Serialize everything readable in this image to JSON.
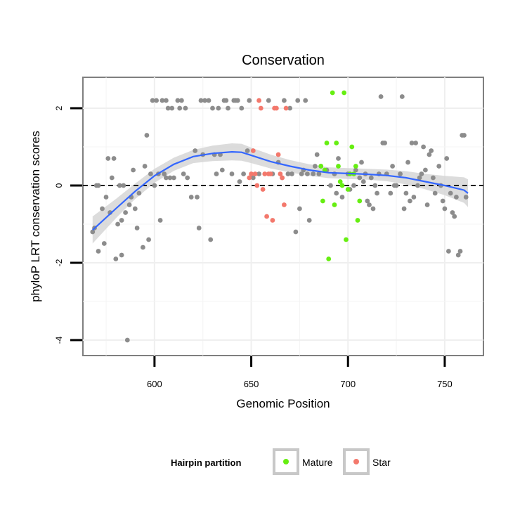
{
  "chart_data": {
    "type": "scatter",
    "title": "Conservation",
    "xlabel": "Genomic Position",
    "ylabel": "phyloP LRT conservation scores",
    "xlim": [
      563,
      770
    ],
    "ylim": [
      -4.4,
      2.8
    ],
    "xticks": [
      600,
      650,
      700,
      750
    ],
    "yticks": [
      -4,
      -2,
      0,
      2
    ],
    "grid": true,
    "reference_line": 0,
    "legend": {
      "title": "Hairpin partition",
      "position": "bottom",
      "entries": [
        {
          "label": "Mature",
          "color": "#66ee11"
        },
        {
          "label": "Star",
          "color": "#f3786c"
        }
      ]
    },
    "colors": {
      "other": "#8c8c8c",
      "mature": "#66ee11",
      "star": "#f3786c",
      "smooth": "#3366ff",
      "band": "#d3d3d3"
    },
    "series": [
      {
        "name": "",
        "group": "other",
        "points": [
          [
            568,
            -1.2
          ],
          [
            569,
            -1.1
          ],
          [
            570,
            0.0
          ],
          [
            571,
            0.0
          ],
          [
            571,
            -1.7
          ],
          [
            573,
            -0.6
          ],
          [
            574,
            -1.5
          ],
          [
            575,
            -0.3
          ],
          [
            576,
            0.7
          ],
          [
            577,
            -0.7
          ],
          [
            578,
            0.2
          ],
          [
            579,
            0.7
          ],
          [
            580,
            -1.9
          ],
          [
            581,
            -1.0
          ],
          [
            582,
            0.0
          ],
          [
            583,
            -0.9
          ],
          [
            583,
            -1.8
          ],
          [
            584,
            0.0
          ],
          [
            585,
            -0.7
          ],
          [
            586,
            -4.0
          ],
          [
            587,
            -0.5
          ],
          [
            588,
            -0.3
          ],
          [
            589,
            0.4
          ],
          [
            590,
            -0.6
          ],
          [
            591,
            -1.1
          ],
          [
            592,
            -0.2
          ],
          [
            594,
            -1.6
          ],
          [
            595,
            0.5
          ],
          [
            596,
            1.3
          ],
          [
            597,
            -1.4
          ],
          [
            598,
            0.3
          ],
          [
            599,
            2.2
          ],
          [
            600,
            0.0
          ],
          [
            601,
            2.2
          ],
          [
            602,
            0.3
          ],
          [
            603,
            -0.9
          ],
          [
            604,
            2.2
          ],
          [
            605,
            0.3
          ],
          [
            606,
            2.2
          ],
          [
            606,
            0.2
          ],
          [
            607,
            2.0
          ],
          [
            608,
            0.2
          ],
          [
            609,
            2.0
          ],
          [
            610,
            0.2
          ],
          [
            612,
            2.2
          ],
          [
            613,
            2.0
          ],
          [
            614,
            2.2
          ],
          [
            615,
            0.3
          ],
          [
            616,
            2.0
          ],
          [
            617,
            0.2
          ],
          [
            619,
            -0.3
          ],
          [
            621,
            0.9
          ],
          [
            622,
            -0.3
          ],
          [
            623,
            -1.1
          ],
          [
            624,
            2.2
          ],
          [
            625,
            0.8
          ],
          [
            626,
            2.2
          ],
          [
            628,
            2.2
          ],
          [
            629,
            -1.4
          ],
          [
            630,
            2.0
          ],
          [
            631,
            0.8
          ],
          [
            632,
            0.3
          ],
          [
            633,
            2.0
          ],
          [
            634,
            0.8
          ],
          [
            635,
            0.4
          ],
          [
            636,
            2.2
          ],
          [
            637,
            2.2
          ],
          [
            638,
            2.0
          ],
          [
            640,
            0.3
          ],
          [
            641,
            2.2
          ],
          [
            642,
            2.2
          ],
          [
            643,
            2.2
          ],
          [
            644,
            0.1
          ],
          [
            645,
            2.0
          ],
          [
            646,
            0.3
          ],
          [
            648,
            0.9
          ],
          [
            649,
            2.2
          ],
          [
            651,
            0.2
          ],
          [
            654,
            0.3
          ],
          [
            659,
            2.2
          ],
          [
            661,
            0.3
          ],
          [
            664,
            0.6
          ],
          [
            666,
            0.2
          ],
          [
            667,
            2.2
          ],
          [
            669,
            0.3
          ],
          [
            670,
            2.0
          ],
          [
            671,
            0.3
          ],
          [
            673,
            -1.2
          ],
          [
            674,
            2.2
          ],
          [
            675,
            -0.6
          ],
          [
            676,
            0.3
          ],
          [
            677,
            0.4
          ],
          [
            678,
            2.2
          ],
          [
            679,
            0.3
          ],
          [
            680,
            -0.9
          ],
          [
            682,
            0.3
          ],
          [
            683,
            0.5
          ],
          [
            684,
            0.8
          ],
          [
            685,
            0.3
          ],
          [
            686,
            0.5
          ],
          [
            689,
            0.4
          ],
          [
            691,
            0.0
          ],
          [
            693,
            0.3
          ],
          [
            694,
            -0.2
          ],
          [
            695,
            0.7
          ],
          [
            697,
            -0.3
          ],
          [
            700,
            0.3
          ],
          [
            701,
            -0.1
          ],
          [
            703,
            0.0
          ],
          [
            704,
            0.4
          ],
          [
            706,
            0.2
          ],
          [
            707,
            0.6
          ],
          [
            708,
            0.1
          ],
          [
            709,
            0.3
          ],
          [
            710,
            -0.4
          ],
          [
            711,
            -0.5
          ],
          [
            712,
            0.2
          ],
          [
            713,
            -0.6
          ],
          [
            714,
            0.0
          ],
          [
            715,
            -0.2
          ],
          [
            716,
            0.3
          ],
          [
            717,
            2.3
          ],
          [
            718,
            1.1
          ],
          [
            719,
            1.1
          ],
          [
            720,
            0.3
          ],
          [
            722,
            -0.2
          ],
          [
            723,
            0.5
          ],
          [
            724,
            0.0
          ],
          [
            725,
            0.0
          ],
          [
            727,
            0.3
          ],
          [
            728,
            2.3
          ],
          [
            729,
            -0.6
          ],
          [
            730,
            -0.2
          ],
          [
            731,
            0.6
          ],
          [
            732,
            -0.4
          ],
          [
            733,
            1.1
          ],
          [
            734,
            -0.3
          ],
          [
            735,
            1.1
          ],
          [
            736,
            0.0
          ],
          [
            737,
            0.2
          ],
          [
            738,
            0.3
          ],
          [
            739,
            1.0
          ],
          [
            740,
            0.4
          ],
          [
            741,
            -0.5
          ],
          [
            742,
            0.8
          ],
          [
            743,
            0.9
          ],
          [
            744,
            0.2
          ],
          [
            745,
            -0.2
          ],
          [
            747,
            0.5
          ],
          [
            748,
            0.0
          ],
          [
            749,
            -0.4
          ],
          [
            750,
            -0.6
          ],
          [
            751,
            0.7
          ],
          [
            752,
            -1.7
          ],
          [
            753,
            -0.2
          ],
          [
            754,
            -0.7
          ],
          [
            755,
            -0.8
          ],
          [
            756,
            -0.3
          ],
          [
            757,
            -1.8
          ],
          [
            758,
            -1.7
          ],
          [
            759,
            1.3
          ],
          [
            760,
            1.3
          ],
          [
            761,
            -0.3
          ]
        ]
      },
      {
        "name": "Mature",
        "group": "mature",
        "points": [
          [
            686,
            0.5
          ],
          [
            687,
            -0.4
          ],
          [
            688,
            0.4
          ],
          [
            689,
            1.1
          ],
          [
            690,
            -1.9
          ],
          [
            692,
            2.4
          ],
          [
            693,
            -0.5
          ],
          [
            694,
            1.1
          ],
          [
            695,
            0.5
          ],
          [
            696,
            0.1
          ],
          [
            697,
            0.0
          ],
          [
            698,
            2.4
          ],
          [
            699,
            -1.4
          ],
          [
            700,
            -0.1
          ],
          [
            701,
            0.3
          ],
          [
            702,
            1.0
          ],
          [
            703,
            0.3
          ],
          [
            704,
            0.5
          ],
          [
            705,
            -0.9
          ],
          [
            706,
            -0.4
          ]
        ]
      },
      {
        "name": "Star",
        "group": "star",
        "points": [
          [
            649,
            0.2
          ],
          [
            650,
            0.3
          ],
          [
            651,
            0.9
          ],
          [
            652,
            0.3
          ],
          [
            653,
            0.0
          ],
          [
            654,
            2.2
          ],
          [
            655,
            2.0
          ],
          [
            656,
            -0.1
          ],
          [
            657,
            0.3
          ],
          [
            658,
            -0.8
          ],
          [
            659,
            0.3
          ],
          [
            660,
            0.3
          ],
          [
            661,
            -0.9
          ],
          [
            662,
            2.0
          ],
          [
            663,
            2.0
          ],
          [
            664,
            0.8
          ],
          [
            665,
            0.3
          ],
          [
            666,
            0.2
          ],
          [
            667,
            -0.5
          ],
          [
            668,
            2.0
          ]
        ]
      }
    ],
    "smooth": {
      "x": [
        568,
        580,
        590,
        600,
        610,
        620,
        630,
        640,
        645,
        650,
        660,
        670,
        680,
        690,
        700,
        710,
        720,
        730,
        740,
        750,
        760,
        762
      ],
      "y": [
        -1.15,
        -0.6,
        -0.15,
        0.25,
        0.55,
        0.75,
        0.83,
        0.87,
        0.86,
        0.78,
        0.62,
        0.5,
        0.4,
        0.33,
        0.31,
        0.29,
        0.26,
        0.2,
        0.1,
        0.0,
        -0.12,
        -0.2
      ],
      "se": [
        0.35,
        0.25,
        0.2,
        0.18,
        0.17,
        0.17,
        0.2,
        0.22,
        0.22,
        0.2,
        0.18,
        0.16,
        0.15,
        0.14,
        0.14,
        0.14,
        0.15,
        0.17,
        0.2,
        0.25,
        0.33,
        0.36
      ]
    }
  }
}
